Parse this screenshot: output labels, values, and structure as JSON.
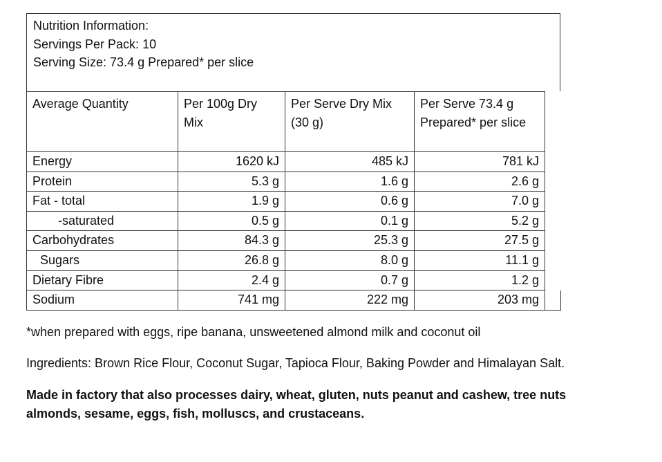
{
  "header": {
    "title": "Nutrition Information:",
    "servings": "Servings Per Pack: 10",
    "serving_size": "Serving Size: 73.4 g Prepared* per slice"
  },
  "columns": {
    "c1": "Average Quantity",
    "c2": "Per 100g Dry Mix",
    "c3": "Per Serve Dry Mix (30 g)",
    "c4": "Per Serve 73.4 g Prepared* per slice"
  },
  "rows": [
    {
      "label": "Energy",
      "per100": "1620 kJ",
      "serve_dry": "485 kJ",
      "serve_prep": "781 kJ"
    },
    {
      "label": "Protein",
      "per100": "5.3 g",
      "serve_dry": "1.6 g",
      "serve_prep": "2.6 g"
    },
    {
      "label": "Fat - total",
      "per100": "1.9 g",
      "serve_dry": "0.6 g",
      "serve_prep": "7.0 g"
    },
    {
      "label": "-saturated",
      "per100": "0.5 g",
      "serve_dry": "0.1 g",
      "serve_prep": "5.2 g"
    },
    {
      "label": "Carbohydrates",
      "per100": "84.3 g",
      "serve_dry": "25.3 g",
      "serve_prep": "27.5 g"
    },
    {
      "label": "Sugars",
      "per100": "26.8 g",
      "serve_dry": "8.0 g",
      "serve_prep": "11.1 g"
    },
    {
      "label": "Dietary Fibre",
      "per100": "2.4 g",
      "serve_dry": "0.7 g",
      "serve_prep": "1.2 g"
    },
    {
      "label": "Sodium",
      "per100": "741 mg",
      "serve_dry": "222 mg",
      "serve_prep": "203 mg"
    }
  ],
  "footnote": "*when prepared with eggs, ripe banana, unsweetened almond milk and coconut oil",
  "ingredients": "Ingredients: Brown Rice Flour, Coconut Sugar, Tapioca Flour, Baking Powder and Himalayan Salt.",
  "allergen": "Made in factory that also processes dairy, wheat, gluten, nuts peanut and cashew, tree nuts almonds, sesame, eggs, fish, molluscs, and crustaceans."
}
